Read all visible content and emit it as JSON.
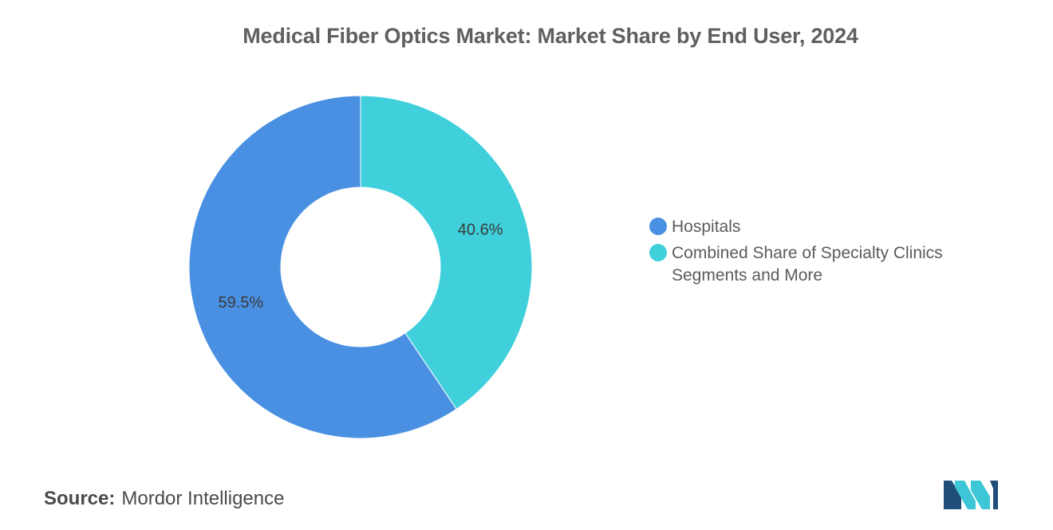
{
  "chart_data": {
    "type": "pie",
    "variant": "donut",
    "title": "Medical Fiber Optics Market: Market Share by End User, 2024",
    "slices": [
      {
        "name": "Hospitals",
        "value": 59.5,
        "label": "59.5%",
        "color": "#4a90e2"
      },
      {
        "name": "Combined Share of Specialty Clinics Segments and More",
        "value": 40.6,
        "label": "40.6%",
        "color": "#40d0dc"
      }
    ],
    "legend_position": "right"
  },
  "footer": {
    "source_key": "Source:",
    "source_value": "Mordor Intelligence"
  },
  "logo": {
    "icon": "mordor-intelligence-logo",
    "colors": [
      "#1f4e79",
      "#3cc6d6"
    ]
  }
}
